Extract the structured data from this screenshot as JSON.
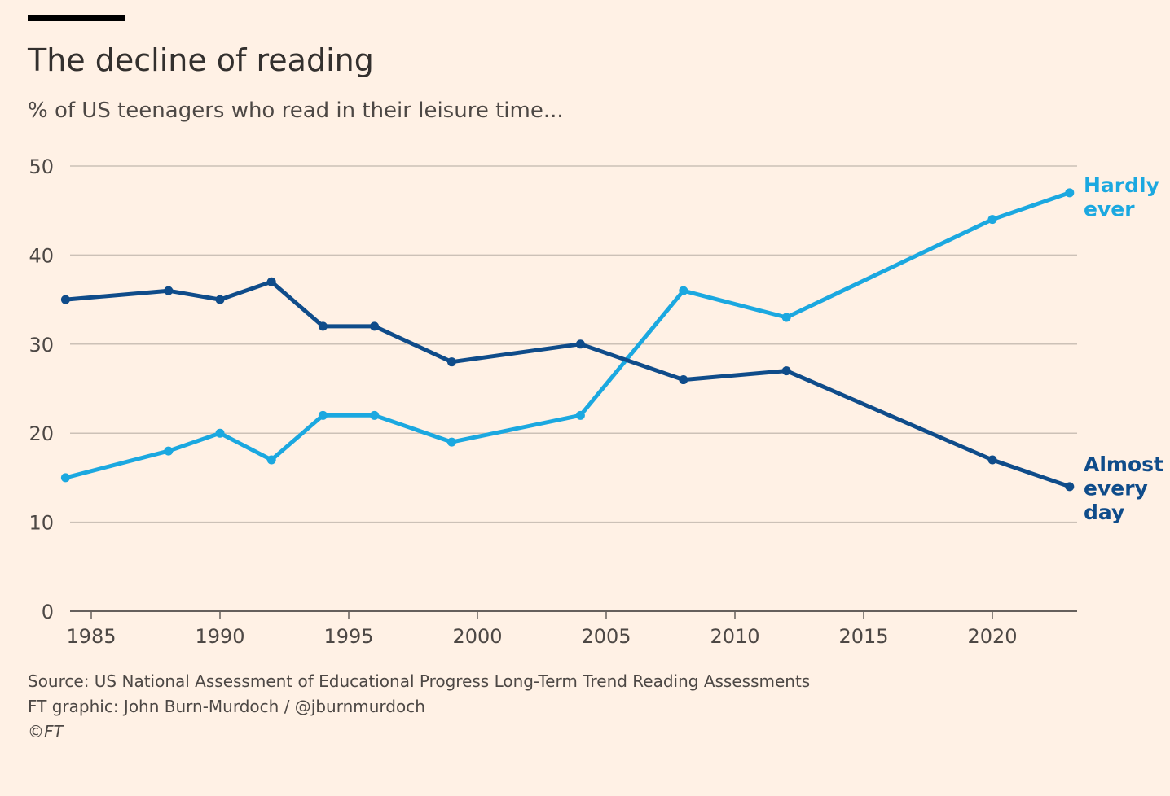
{
  "header": {
    "title": "The decline of reading",
    "subtitle": "% of US teenagers who read in their leisure time..."
  },
  "footer": {
    "source": "Source: US National Assessment of Educational Progress Long-Term Trend Reading Assessments",
    "credit": "FT graphic: John Burn-Murdoch / @jburnmurdoch",
    "copyright": "©FT"
  },
  "colors": {
    "background": "#fff1e5",
    "almost_every_day": "#0f4c8a",
    "hardly_ever": "#1ba8e0",
    "grid": "#ccc1b7",
    "axis": "#66605c",
    "text": "#33302e"
  },
  "chart_data": {
    "type": "line",
    "title": "The decline of reading",
    "subtitle": "% of US teenagers who read in their leisure time...",
    "xlabel": "",
    "ylabel": "",
    "xlim": [
      1984,
      2023
    ],
    "ylim": [
      0,
      50
    ],
    "yticks": [
      0,
      10,
      20,
      30,
      40,
      50
    ],
    "xticks": [
      1985,
      1990,
      1995,
      2000,
      2005,
      2010,
      2015,
      2020
    ],
    "grid": true,
    "legend": "direct labels at line ends (right)",
    "series": [
      {
        "name": "Hardly ever",
        "label_lines": [
          "Hardly",
          "ever"
        ],
        "color": "#1ba8e0",
        "x": [
          1984,
          1988,
          1990,
          1992,
          1994,
          1996,
          1999,
          2004,
          2008,
          2012,
          2020,
          2023
        ],
        "values": [
          15,
          18,
          20,
          17,
          22,
          22,
          19,
          22,
          36,
          33,
          44,
          47
        ]
      },
      {
        "name": "Almost every day",
        "label_lines": [
          "Almost",
          "every",
          "day"
        ],
        "color": "#0f4c8a",
        "x": [
          1984,
          1988,
          1990,
          1992,
          1994,
          1996,
          1999,
          2004,
          2008,
          2012,
          2020,
          2023
        ],
        "values": [
          35,
          36,
          35,
          37,
          32,
          32,
          28,
          30,
          26,
          27,
          17,
          14
        ]
      }
    ]
  }
}
